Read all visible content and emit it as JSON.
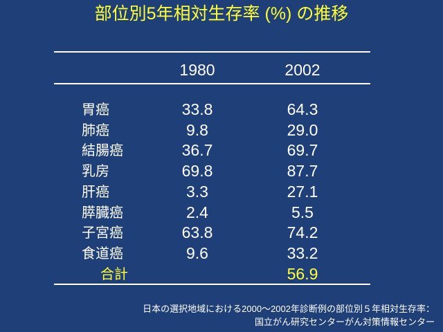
{
  "title": "部位別5年相対生存率 (%) の推移",
  "table": {
    "columns": [
      "1980",
      "2002"
    ],
    "rows": [
      {
        "label": "胃癌",
        "values": [
          "33.8",
          "64.3"
        ]
      },
      {
        "label": "肺癌",
        "values": [
          "9.8",
          "29.0"
        ]
      },
      {
        "label": "結腸癌",
        "values": [
          "36.7",
          "69.7"
        ]
      },
      {
        "label": "乳房",
        "values": [
          "69.8",
          "87.7"
        ]
      },
      {
        "label": "肝癌",
        "values": [
          "3.3",
          "27.1"
        ]
      },
      {
        "label": "膵臓癌",
        "values": [
          "2.4",
          "5.5"
        ]
      },
      {
        "label": "子宮癌",
        "values": [
          "63.8",
          "74.2"
        ]
      },
      {
        "label": "食道癌",
        "values": [
          "9.6",
          "33.2"
        ]
      }
    ],
    "total": {
      "label": "合計",
      "value": "56.9"
    }
  },
  "source": [
    "日本の選択地域における2000～2002年診断例の部位別５年相対生存率：",
    "国立がん研究センターがん対策情報センター"
  ]
}
